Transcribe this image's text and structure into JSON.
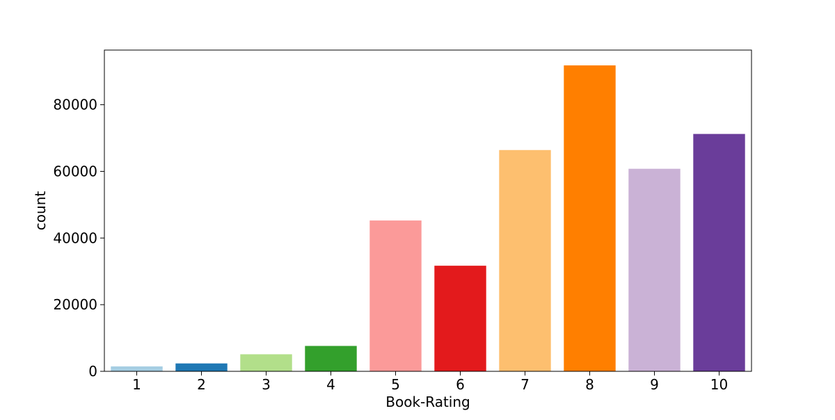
{
  "chart_data": {
    "type": "bar",
    "categories": [
      "1",
      "2",
      "3",
      "4",
      "5",
      "6",
      "7",
      "8",
      "9",
      "10"
    ],
    "values": [
      1480,
      2370,
      5120,
      7620,
      45260,
      31690,
      66400,
      91800,
      60780,
      71230
    ],
    "colors": [
      "#a6cee3",
      "#1f78b4",
      "#b2df8a",
      "#33a02c",
      "#fb9a99",
      "#e31a1c",
      "#fdbf6f",
      "#ff7f00",
      "#cab2d6",
      "#6a3d9a"
    ],
    "xlabel": "Book-Rating",
    "ylabel": "count",
    "ylim": [
      0,
      96400
    ],
    "yticks": [
      0,
      20000,
      40000,
      60000,
      80000
    ],
    "ytick_labels": [
      "0",
      "20000",
      "40000",
      "60000",
      "80000"
    ],
    "grid": false,
    "legend": false
  }
}
